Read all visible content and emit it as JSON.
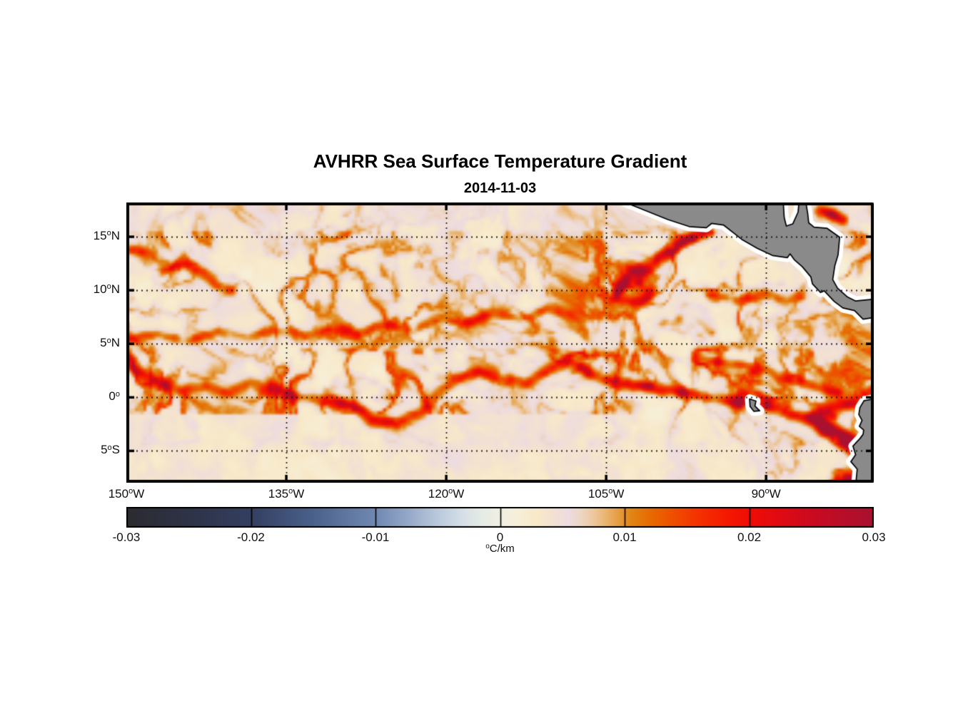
{
  "chart_data": {
    "type": "heatmap",
    "title": "AVHRR Sea Surface Temperature Gradient",
    "date": "2014-11-03",
    "axes": {
      "lon_range": [
        -150,
        -79.9
      ],
      "lat_range": [
        -7.97,
        18.2
      ],
      "lon_ticks": [
        {
          "value": -150,
          "base": "150",
          "sup": "o",
          "suffix": "W"
        },
        {
          "value": -135,
          "base": "135",
          "sup": "o",
          "suffix": "W"
        },
        {
          "value": -120,
          "base": "120",
          "sup": "o",
          "suffix": "W"
        },
        {
          "value": -105,
          "base": "105",
          "sup": "o",
          "suffix": "W"
        },
        {
          "value": -90,
          "base": "90",
          "sup": "o",
          "suffix": "W"
        }
      ],
      "lat_ticks": [
        {
          "value": 15,
          "base": "15",
          "sup": "o",
          "suffix": "N"
        },
        {
          "value": 10,
          "base": "10",
          "sup": "o",
          "suffix": "N"
        },
        {
          "value": 5,
          "base": "5",
          "sup": "o",
          "suffix": "N"
        },
        {
          "value": 0,
          "base": "0",
          "sup": "o",
          "suffix": ""
        },
        {
          "value": -5,
          "base": "5",
          "sup": "o",
          "suffix": "S"
        }
      ],
      "grid": "dotted"
    },
    "colorbar": {
      "range": [
        -0.03,
        0.03
      ],
      "ticks": [
        -0.03,
        -0.02,
        -0.01,
        0,
        0.01,
        0.02,
        0.03
      ],
      "tick_labels": [
        "-0.03",
        "-0.02",
        "-0.01",
        "0",
        "0.01",
        "0.02",
        "0.03"
      ],
      "unit_sup": "o",
      "unit_text": "C/km",
      "colormap": [
        [
          -0.03,
          "#2b2b30"
        ],
        [
          -0.025,
          "#2e3347"
        ],
        [
          -0.02,
          "#343f60"
        ],
        [
          -0.015,
          "#4a618c"
        ],
        [
          -0.01,
          "#7089b2"
        ],
        [
          -0.0075,
          "#93a7c7"
        ],
        [
          -0.005,
          "#bac9dc"
        ],
        [
          -0.003,
          "#d6dfe7"
        ],
        [
          -0.0015,
          "#e5ebe5"
        ],
        [
          0,
          "#f1efe3"
        ],
        [
          0.0015,
          "#f7efd8"
        ],
        [
          0.003,
          "#f8e9c9"
        ],
        [
          0.0045,
          "#f2e0d5"
        ],
        [
          0.0055,
          "#eddce2"
        ],
        [
          0.0065,
          "#eed6c2"
        ],
        [
          0.0075,
          "#edc89e"
        ],
        [
          0.0085,
          "#eab470"
        ],
        [
          0.0095,
          "#e59d42"
        ],
        [
          0.0105,
          "#e18616"
        ],
        [
          0.012,
          "#e76c02"
        ],
        [
          0.014,
          "#ef4d00"
        ],
        [
          0.016,
          "#f43100"
        ],
        [
          0.018,
          "#f51b00"
        ],
        [
          0.02,
          "#f00d05"
        ],
        [
          0.0225,
          "#e00a13"
        ],
        [
          0.025,
          "#cb0a20"
        ],
        [
          0.0275,
          "#b90e29"
        ],
        [
          0.03,
          "#a81230"
        ]
      ]
    },
    "land": {
      "fill": "#8a8a8a",
      "outline": "#000000",
      "halo": "#ffffff",
      "polygons": {
        "central_america": [
          [
            -103.2,
            18.2
          ],
          [
            -101.2,
            17.4
          ],
          [
            -99.2,
            16.6
          ],
          [
            -97.2,
            15.95
          ],
          [
            -95.6,
            15.85
          ],
          [
            -95.1,
            16.25
          ],
          [
            -94.0,
            16.1
          ],
          [
            -92.9,
            15.25
          ],
          [
            -92.2,
            14.7
          ],
          [
            -90.8,
            13.9
          ],
          [
            -89.4,
            13.25
          ],
          [
            -88.0,
            13.05
          ],
          [
            -87.75,
            13.4
          ],
          [
            -87.35,
            12.85
          ],
          [
            -86.6,
            12.2
          ],
          [
            -85.8,
            11.25
          ],
          [
            -85.65,
            10.6
          ],
          [
            -84.9,
            9.8
          ],
          [
            -84.55,
            9.95
          ],
          [
            -83.6,
            8.95
          ],
          [
            -82.8,
            8.35
          ],
          [
            -81.7,
            8.1
          ],
          [
            -80.9,
            7.3
          ],
          [
            -79.6,
            7.5
          ],
          [
            -79.6,
            9.2
          ],
          [
            -81.6,
            9.0
          ],
          [
            -82.4,
            9.4
          ],
          [
            -83.3,
            10.2
          ],
          [
            -83.75,
            11.0
          ],
          [
            -83.55,
            12.3
          ],
          [
            -83.25,
            13.3
          ],
          [
            -83.1,
            14.95
          ],
          [
            -84.3,
            15.8
          ],
          [
            -85.5,
            15.9
          ],
          [
            -86.0,
            16.3
          ],
          [
            -86.1,
            17.2
          ],
          [
            -86.3,
            18.4
          ],
          [
            -86.9,
            18.4
          ],
          [
            -87.0,
            17.3
          ],
          [
            -87.5,
            16.2
          ],
          [
            -88.1,
            16.0
          ],
          [
            -88.3,
            16.8
          ],
          [
            -88.4,
            18.4
          ]
        ],
        "south_america": [
          [
            -79.6,
            -0.1
          ],
          [
            -80.8,
            -0.3
          ],
          [
            -81.2,
            -0.95
          ],
          [
            -81.3,
            -1.6
          ],
          [
            -81.0,
            -2.15
          ],
          [
            -81.25,
            -2.7
          ],
          [
            -80.85,
            -3.05
          ],
          [
            -80.9,
            -3.45
          ],
          [
            -81.2,
            -3.85
          ],
          [
            -81.85,
            -4.55
          ],
          [
            -81.6,
            -5.35
          ],
          [
            -82.05,
            -6.0
          ],
          [
            -81.45,
            -6.7
          ],
          [
            -81.6,
            -8.2
          ],
          [
            -79.6,
            -8.2
          ]
        ],
        "galapagos": [
          [
            -91.55,
            -0.15
          ],
          [
            -90.95,
            -0.35
          ],
          [
            -91.05,
            -0.8
          ],
          [
            -90.6,
            -1.25
          ],
          [
            -91.15,
            -1.3
          ],
          [
            -91.5,
            -0.85
          ]
        ]
      }
    },
    "ocean_field": {
      "seed": 7,
      "background_value_range": [
        0.0,
        0.0065
      ],
      "fronts": [
        {
          "name": "equatorial-front",
          "width": 0.55,
          "points": [
            [
              -150,
              3.4,
              0.02
            ],
            [
              -148.6,
              2.3,
              0.022
            ],
            [
              -147,
              1.2,
              0.017
            ],
            [
              -145,
              0.7,
              0.012
            ],
            [
              -142.6,
              1.0,
              0.012
            ],
            [
              -140.3,
              0.4,
              0.013
            ],
            [
              -138.4,
              1.4,
              0.011
            ],
            [
              -136.3,
              0.8,
              0.013
            ],
            [
              -133.9,
              0.1,
              0.015
            ],
            [
              -131.3,
              -0.3,
              0.017
            ],
            [
              -128.7,
              -0.7,
              0.021
            ],
            [
              -126.9,
              -2.1,
              0.024
            ],
            [
              -124.6,
              -2.4,
              0.022
            ],
            [
              -122.4,
              -1.4,
              0.016
            ],
            [
              -120.8,
              0.3,
              0.013
            ],
            [
              -118.9,
              1.7,
              0.014
            ],
            [
              -116.9,
              2.4,
              0.016
            ],
            [
              -114.7,
              1.8,
              0.012
            ],
            [
              -112.5,
              1.3,
              0.013
            ],
            [
              -110.6,
              2.5,
              0.016
            ],
            [
              -108.4,
              3.3,
              0.019
            ],
            [
              -106.2,
              2.1,
              0.022
            ],
            [
              -104.1,
              1.4,
              0.018
            ],
            [
              -101.9,
              1.1,
              0.022
            ],
            [
              -99.7,
              0.7,
              0.024
            ],
            [
              -97.3,
              0.4,
              0.018
            ],
            [
              -95.1,
              -0.1,
              0.014
            ],
            [
              -92.9,
              -0.3,
              0.018
            ],
            [
              -90.5,
              -0.5,
              0.022
            ],
            [
              -88.1,
              -1.3,
              0.022
            ],
            [
              -85.6,
              -2.1,
              0.024
            ],
            [
              -83.4,
              -3.1,
              0.026
            ],
            [
              -81.6,
              -4.2,
              0.026
            ],
            [
              -80.1,
              -4.9,
              0.024
            ]
          ]
        },
        {
          "name": "countercurrent-front",
          "width": 0.5,
          "points": [
            [
              -150,
              5.4,
              0.011
            ],
            [
              -147.2,
              5.9,
              0.013
            ],
            [
              -144.3,
              5.3,
              0.01
            ],
            [
              -141.3,
              6.1,
              0.012
            ],
            [
              -138.6,
              5.5,
              0.01
            ],
            [
              -136.1,
              6.3,
              0.013
            ],
            [
              -133.1,
              5.7,
              0.01
            ],
            [
              -130.6,
              6.5,
              0.012
            ],
            [
              -128.1,
              5.9,
              0.011
            ],
            [
              -125.6,
              6.9,
              0.013
            ],
            [
              -123.1,
              6.3,
              0.01
            ],
            [
              -120.6,
              7.5,
              0.012
            ],
            [
              -118.1,
              6.9,
              0.011
            ],
            [
              -115.6,
              7.9,
              0.013
            ],
            [
              -113.1,
              7.3,
              0.01
            ],
            [
              -110.6,
              8.3,
              0.012
            ],
            [
              -108.1,
              7.7,
              0.011
            ]
          ]
        },
        {
          "name": "northwest-arc",
          "width": 0.5,
          "points": [
            [
              -149.6,
              13.9,
              0.012
            ],
            [
              -147.6,
              13.3,
              0.013
            ],
            [
              -146.1,
              12.3,
              0.011
            ],
            [
              -146.6,
              11.9,
              0.015
            ],
            [
              -144.6,
              12.5,
              0.016
            ],
            [
              -142.9,
              11.7,
              0.016
            ],
            [
              -141.6,
              10.5,
              0.014
            ],
            [
              -140.1,
              9.9,
              0.011
            ]
          ]
        },
        {
          "name": "tehuantepec-hook",
          "width": 0.6,
          "points": [
            [
              -100.6,
              10.1,
              0.018
            ],
            [
              -101.3,
              9.3,
              0.02
            ],
            [
              -102.6,
              8.9,
              0.02
            ],
            [
              -103.9,
              9.3,
              0.022
            ],
            [
              -103.6,
              10.4,
              0.024
            ],
            [
              -102.4,
              11.5,
              0.026
            ],
            [
              -100.9,
              12.3,
              0.024
            ],
            [
              -99.5,
              13.3,
              0.026
            ],
            [
              -98.1,
              14.4,
              0.024
            ],
            [
              -96.7,
              15.1,
              0.026
            ],
            [
              -95.9,
              15.4,
              0.024
            ]
          ]
        },
        {
          "name": "papagayo-front",
          "width": 0.5,
          "points": [
            [
              -95.2,
              9.6,
              0.011
            ],
            [
              -92.6,
              9.1,
              0.012
            ],
            [
              -90.1,
              9.7,
              0.013
            ],
            [
              -88.1,
              8.9,
              0.011
            ],
            [
              -86.6,
              9.6,
              0.01
            ]
          ]
        },
        {
          "name": "east-equator-branch",
          "width": 0.5,
          "points": [
            [
              -96.2,
              3.6,
              0.014
            ],
            [
              -93.2,
              3.1,
              0.016
            ],
            [
              -90.2,
              2.6,
              0.018
            ],
            [
              -87.6,
              1.6,
              0.016
            ],
            [
              -85.2,
              0.9,
              0.014
            ],
            [
              -83.2,
              0.3,
              0.013
            ]
          ]
        },
        {
          "name": "peru-coastal-front",
          "width": 0.6,
          "points": [
            [
              -80.2,
              0.4,
              0.018
            ],
            [
              -82.1,
              -0.5,
              0.022
            ],
            [
              -84.1,
              -1.1,
              0.024
            ],
            [
              -85.6,
              -1.9,
              0.026
            ],
            [
              -84.6,
              -3.1,
              0.024
            ],
            [
              -83.1,
              -3.9,
              0.022
            ],
            [
              -81.9,
              -4.9,
              0.024
            ],
            [
              -80.9,
              -5.9,
              0.026
            ],
            [
              -80.4,
              -6.9,
              0.026
            ],
            [
              -81.6,
              -7.5,
              0.024
            ],
            [
              -83.1,
              -7.8,
              0.02
            ]
          ]
        },
        {
          "name": "caribbean-filament",
          "width": 0.5,
          "points": [
            [
              -85.0,
              17.4,
              0.02
            ],
            [
              -83.9,
              17.1,
              0.024
            ],
            [
              -82.9,
              16.6,
              0.018
            ]
          ]
        }
      ],
      "dark_spots": [
        [
          -101.9,
          10.8,
          0.45
        ],
        [
          -96.9,
          14.9,
          0.4
        ],
        [
          -95.1,
          15.4,
          0.3
        ],
        [
          -92.5,
          -0.5,
          0.5
        ],
        [
          -89.9,
          -0.6,
          0.35
        ],
        [
          -84.9,
          -2.2,
          0.45
        ],
        [
          -83.7,
          -1.8,
          0.4
        ],
        [
          -103.6,
          10.3,
          0.3
        ],
        [
          -84.0,
          17.1,
          0.35
        ]
      ]
    }
  }
}
